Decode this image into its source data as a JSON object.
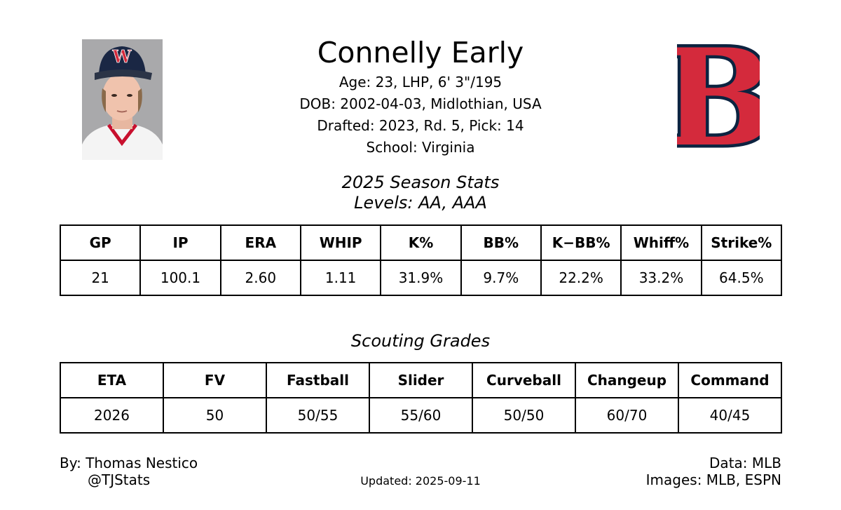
{
  "player": {
    "name": "Connelly Early",
    "age_line": "Age: 23, LHP, 6' 3\"/195",
    "dob_line": "DOB: 2002-04-03, Midlothian, USA",
    "draft_line": "Drafted: 2023, Rd. 5, Pick: 14",
    "school_line": "School: Virginia",
    "cap_letter": "W"
  },
  "team_logo": {
    "letter": "B",
    "fill_color": "#d42a3c",
    "outline_color": "#0c2340"
  },
  "season_stats": {
    "title": "2025 Season Stats",
    "levels": "Levels: AA, AAA",
    "headers": [
      "GP",
      "IP",
      "ERA",
      "WHIP",
      "K%",
      "BB%",
      "K−BB%",
      "Whiff%",
      "Strike%"
    ],
    "values": [
      "21",
      "100.1",
      "2.60",
      "1.11",
      "31.9%",
      "9.7%",
      "22.2%",
      "33.2%",
      "64.5%"
    ]
  },
  "scouting": {
    "title": "Scouting Grades",
    "headers": [
      "ETA",
      "FV",
      "Fastball",
      "Slider",
      "Curveball",
      "Changeup",
      "Command"
    ],
    "values": [
      "2026",
      "50",
      "50/55",
      "55/60",
      "50/50",
      "60/70",
      "40/45"
    ]
  },
  "footer": {
    "author": "By: Thomas Nestico",
    "handle": "@TJStats",
    "updated": "Updated: 2025-09-11",
    "data_source": "Data: MLB",
    "images_source": "Images: MLB, ESPN"
  }
}
